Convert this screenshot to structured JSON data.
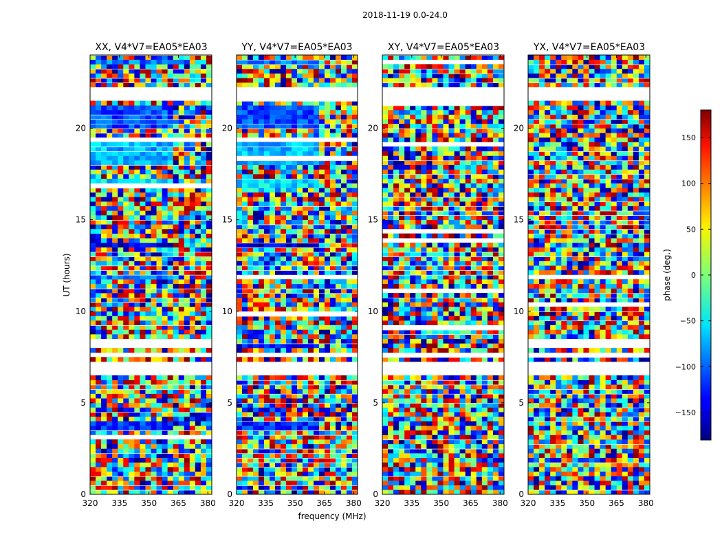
{
  "figure": {
    "suptitle": "2018-11-19 0.0-24.0"
  },
  "chart_data": {
    "type": "heatmap",
    "title": "2018-11-19 0.0-24.0",
    "xlabel": "frequency (MHz)",
    "ylabel": "UT (hours)",
    "xlim": [
      320,
      382
    ],
    "ylim": [
      0,
      24
    ],
    "x_ticks": [
      320,
      335,
      350,
      365,
      380
    ],
    "y_ticks": [
      0,
      5,
      10,
      15,
      20
    ],
    "panels": [
      {
        "title": "XX, V4*V7=EA05*EA03",
        "pol": "XX"
      },
      {
        "title": "YY, V4*V7=EA05*EA03",
        "pol": "YY"
      },
      {
        "title": "XY, V4*V7=EA05*EA03",
        "pol": "XY"
      },
      {
        "title": "YX, V4*V7=EA05*EA03",
        "pol": "YX"
      }
    ],
    "flagged_ut_ranges": [
      [
        22.3,
        21.5
      ],
      [
        7.8,
        7.5
      ],
      [
        7.2,
        6.6
      ]
    ],
    "coherent_phase_bands": [
      {
        "ut": [
          23.4,
          23.8
        ],
        "phase": -95,
        "pols": [
          "XX",
          "YY"
        ]
      },
      {
        "ut": [
          20.0,
          21.2
        ],
        "phase": -110,
        "pols": [
          "XX",
          "YY"
        ]
      },
      {
        "ut": [
          17.9,
          19.2
        ],
        "phase": -70,
        "pols": [
          "XX",
          "YY"
        ]
      },
      {
        "ut": [
          16.8,
          17.3
        ],
        "phase": -55,
        "pols": [
          "XX",
          "YY"
        ]
      },
      {
        "ut": [
          13.5,
          13.8
        ],
        "phase": -150,
        "pols": [
          "XX",
          "YY"
        ]
      },
      {
        "ut": [
          11.8,
          12.1
        ],
        "phase": -90,
        "pols": [
          "XX",
          "YY"
        ]
      },
      {
        "ut": [
          8.0,
          8.3
        ],
        "phase": -140,
        "pols": [
          "XX",
          "YY"
        ]
      },
      {
        "ut": [
          3.5,
          4.1
        ],
        "phase": -120,
        "pols": [
          "XX",
          "YY"
        ]
      }
    ],
    "colorbar": {
      "label": "phase (deg.)",
      "range": [
        -180,
        180
      ],
      "ticks": [
        -150,
        -100,
        -50,
        0,
        50,
        100,
        150
      ],
      "tick_labels": [
        "−150",
        "−100",
        "−50",
        "0",
        "50",
        "100",
        "150"
      ]
    }
  }
}
